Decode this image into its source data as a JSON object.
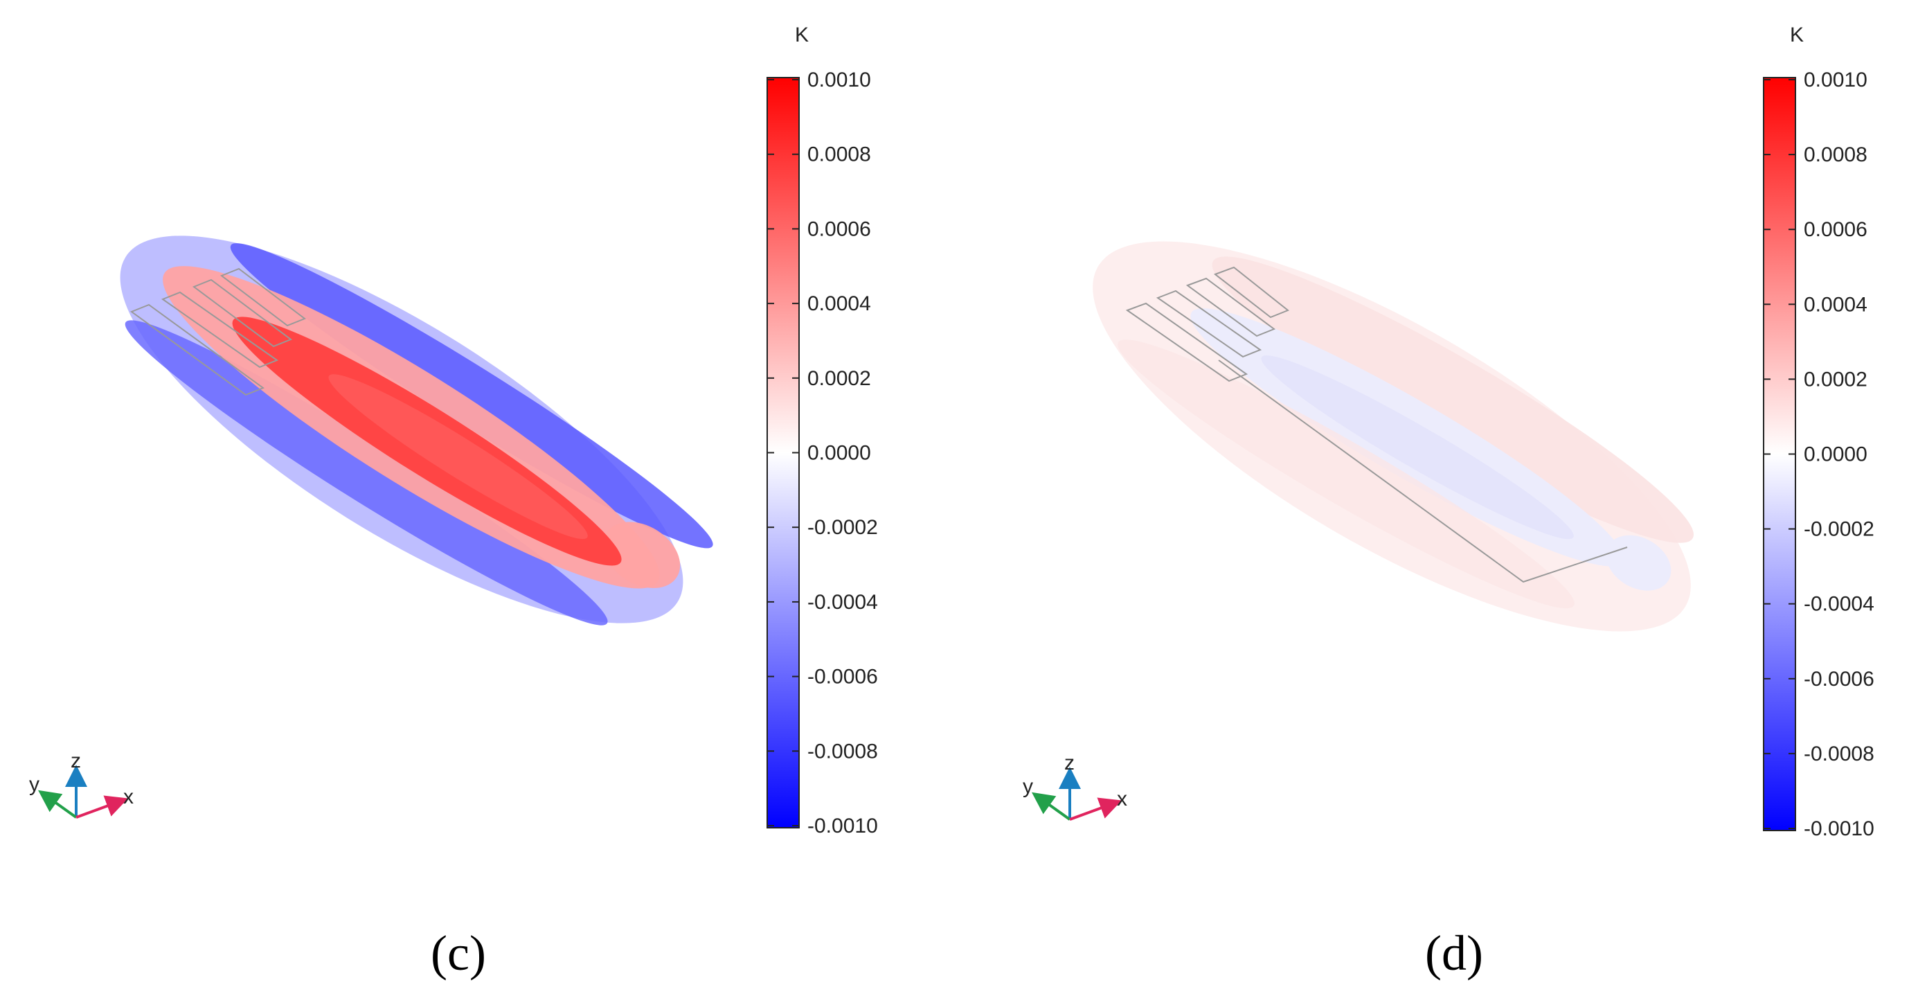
{
  "panels": [
    {
      "label": "(c)",
      "colorbar": {
        "unit": "K",
        "ticks": [
          "0.0010",
          "0.0008",
          "0.0006",
          "0.0004",
          "0.0002",
          "0.0000",
          "-0.0002",
          "-0.0004",
          "-0.0006",
          "-0.0008",
          "-0.0010"
        ],
        "colors": {
          "top": "#ff0000",
          "middle": "#ffffff",
          "bottom": "#0000ff"
        }
      },
      "axes": {
        "z": "z",
        "y": "y",
        "x": "x"
      }
    },
    {
      "label": "(d)",
      "colorbar": {
        "unit": "K",
        "ticks": [
          "0.0010",
          "0.0008",
          "0.0006",
          "0.0004",
          "0.0002",
          "0.0000",
          "-0.0002",
          "-0.0004",
          "-0.0006",
          "-0.0008",
          "-0.0010"
        ],
        "colors": {
          "top": "#ff0000",
          "middle": "#ffffff",
          "bottom": "#0000ff"
        }
      },
      "axes": {
        "z": "z",
        "y": "y",
        "x": "x"
      }
    }
  ],
  "axis_colors": {
    "z": "#1a7fc1",
    "y": "#22a04a",
    "x": "#e0245e"
  }
}
